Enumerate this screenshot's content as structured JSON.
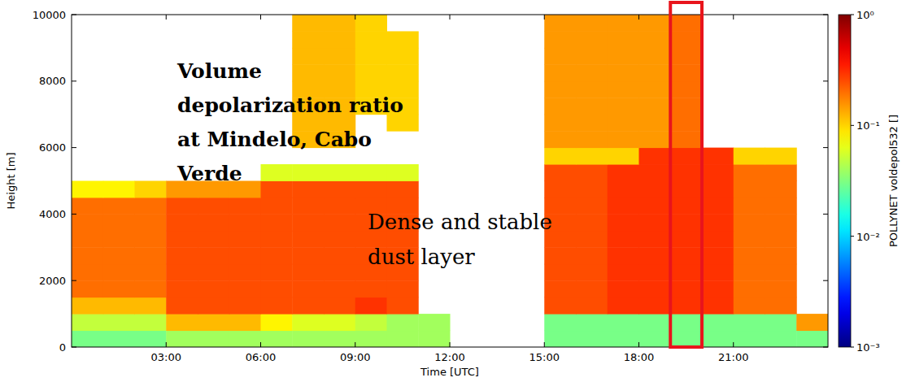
{
  "chart_data": {
    "type": "heatmap",
    "x_label": "Time [UTC]",
    "y_label": "Height [m]",
    "annotations": [
      "Volume depolarization ratio at Mindelo, Cabo Verde",
      "Dense and stable dust layer"
    ],
    "x_bins": [
      0,
      1,
      2,
      3,
      4,
      5,
      6,
      7,
      8,
      9,
      10,
      11,
      12,
      13,
      14,
      15,
      16,
      17,
      18,
      19,
      20,
      21,
      22,
      23,
      24
    ],
    "y_bins": [
      0,
      500,
      1000,
      1500,
      2000,
      2500,
      3000,
      3500,
      4000,
      4500,
      5000,
      5500,
      6000,
      6500,
      7000,
      7500,
      8000,
      8500,
      9000,
      9500,
      10000
    ],
    "cells": [
      [
        0.03,
        0.03,
        0.03,
        0.04,
        0.04,
        0.04,
        0.04,
        0.04,
        0.04,
        0.04,
        0.04,
        0.04,
        null,
        null,
        null,
        0.03,
        0.03,
        0.03,
        0.03,
        0.03,
        0.03,
        0.03,
        0.03,
        0.03
      ],
      [
        0.05,
        0.05,
        0.05,
        0.12,
        0.12,
        0.12,
        0.08,
        0.06,
        0.06,
        0.05,
        0.04,
        0.04,
        null,
        null,
        null,
        0.03,
        0.03,
        0.03,
        0.03,
        0.03,
        0.03,
        0.03,
        0.03,
        0.15
      ],
      [
        0.12,
        0.12,
        0.12,
        0.25,
        0.25,
        0.25,
        0.25,
        0.25,
        0.25,
        0.3,
        0.25,
        null,
        null,
        null,
        null,
        0.25,
        0.25,
        0.3,
        0.3,
        0.3,
        0.3,
        0.2,
        0.2,
        null
      ],
      [
        0.2,
        0.2,
        0.2,
        0.25,
        0.25,
        0.25,
        0.25,
        0.25,
        0.25,
        0.25,
        0.25,
        null,
        null,
        null,
        null,
        0.25,
        0.25,
        0.3,
        0.3,
        0.3,
        0.3,
        0.2,
        0.2,
        null
      ],
      [
        0.2,
        0.2,
        0.2,
        0.25,
        0.25,
        0.25,
        0.25,
        0.25,
        0.25,
        0.25,
        0.25,
        null,
        null,
        null,
        null,
        0.25,
        0.25,
        0.3,
        0.3,
        0.3,
        0.3,
        0.2,
        0.2,
        null
      ],
      [
        0.2,
        0.2,
        0.2,
        0.25,
        0.25,
        0.25,
        0.25,
        0.25,
        0.25,
        0.25,
        0.25,
        null,
        null,
        null,
        null,
        0.25,
        0.25,
        0.3,
        0.3,
        0.3,
        0.3,
        0.2,
        0.2,
        null
      ],
      [
        0.2,
        0.2,
        0.2,
        0.25,
        0.25,
        0.25,
        0.25,
        0.25,
        0.25,
        0.25,
        0.25,
        null,
        null,
        null,
        null,
        0.25,
        0.25,
        0.3,
        0.3,
        0.3,
        0.3,
        0.2,
        0.2,
        null
      ],
      [
        0.2,
        0.2,
        0.2,
        0.25,
        0.25,
        0.25,
        0.25,
        0.25,
        0.25,
        0.25,
        0.25,
        null,
        null,
        null,
        null,
        0.25,
        0.25,
        0.3,
        0.3,
        0.3,
        0.3,
        0.2,
        0.2,
        null
      ],
      [
        0.2,
        0.2,
        0.2,
        0.25,
        0.25,
        0.25,
        0.25,
        0.25,
        0.25,
        0.25,
        0.25,
        null,
        null,
        null,
        null,
        0.25,
        0.25,
        0.3,
        0.3,
        0.3,
        0.3,
        0.2,
        0.2,
        null
      ],
      [
        0.08,
        0.08,
        0.1,
        0.15,
        0.15,
        0.15,
        0.25,
        0.25,
        0.25,
        0.25,
        0.25,
        null,
        null,
        null,
        null,
        0.25,
        0.25,
        0.3,
        0.3,
        0.3,
        0.3,
        0.2,
        0.2,
        null
      ],
      [
        null,
        null,
        null,
        null,
        null,
        null,
        0.06,
        0.06,
        0.06,
        0.06,
        0.06,
        null,
        null,
        null,
        null,
        0.25,
        0.25,
        0.3,
        0.3,
        0.3,
        0.3,
        0.2,
        0.2,
        null
      ],
      [
        null,
        null,
        null,
        null,
        null,
        null,
        null,
        null,
        null,
        null,
        null,
        null,
        null,
        null,
        null,
        0.1,
        0.1,
        0.1,
        0.3,
        0.3,
        0.3,
        0.1,
        0.1,
        null
      ],
      [
        null,
        null,
        null,
        null,
        null,
        null,
        null,
        0.12,
        0.12,
        null,
        null,
        null,
        null,
        null,
        null,
        0.15,
        0.15,
        0.15,
        0.15,
        0.2,
        null,
        null,
        null,
        null
      ],
      [
        null,
        null,
        null,
        null,
        null,
        null,
        null,
        0.12,
        0.12,
        null,
        0.1,
        null,
        null,
        null,
        null,
        0.15,
        0.15,
        0.15,
        0.15,
        0.2,
        null,
        null,
        null,
        null
      ],
      [
        null,
        null,
        null,
        null,
        null,
        null,
        null,
        0.12,
        0.12,
        0.1,
        0.1,
        null,
        null,
        null,
        null,
        0.15,
        0.15,
        0.15,
        0.15,
        0.2,
        null,
        null,
        null,
        null
      ],
      [
        null,
        null,
        null,
        null,
        null,
        null,
        null,
        0.12,
        0.12,
        0.1,
        0.1,
        null,
        null,
        null,
        null,
        0.15,
        0.15,
        0.15,
        0.15,
        0.2,
        null,
        null,
        null,
        null
      ],
      [
        null,
        null,
        null,
        null,
        null,
        null,
        null,
        0.12,
        0.12,
        0.1,
        0.1,
        null,
        null,
        null,
        null,
        0.15,
        0.15,
        0.15,
        0.15,
        0.2,
        null,
        null,
        null,
        null
      ],
      [
        null,
        null,
        null,
        null,
        null,
        null,
        null,
        0.12,
        0.12,
        0.1,
        0.1,
        null,
        null,
        null,
        null,
        0.15,
        0.15,
        0.15,
        0.15,
        0.2,
        null,
        null,
        null,
        null
      ],
      [
        null,
        null,
        null,
        null,
        null,
        null,
        null,
        0.12,
        0.12,
        0.1,
        0.1,
        null,
        null,
        null,
        null,
        0.15,
        0.15,
        0.15,
        0.15,
        0.2,
        null,
        null,
        null,
        null
      ],
      [
        null,
        null,
        null,
        null,
        null,
        null,
        null,
        0.12,
        0.12,
        0.1,
        null,
        null,
        null,
        null,
        null,
        0.15,
        0.15,
        0.15,
        0.15,
        0.2,
        null,
        null,
        null,
        null
      ]
    ],
    "xlim": [
      0,
      24
    ],
    "ylim": [
      0,
      10000
    ],
    "xticks": [
      {
        "value": 3,
        "label": "03:00"
      },
      {
        "value": 6,
        "label": "06:00"
      },
      {
        "value": 9,
        "label": "09:00"
      },
      {
        "value": 12,
        "label": "12:00"
      },
      {
        "value": 15,
        "label": "15:00"
      },
      {
        "value": 18,
        "label": "18:00"
      },
      {
        "value": 21,
        "label": "21:00"
      }
    ],
    "yticks": [
      0,
      2000,
      4000,
      6000,
      8000,
      10000
    ],
    "colorbar": {
      "label": "POLLYNET voldepol532 []",
      "range": [
        0.001,
        1
      ],
      "log": true,
      "ticks": [
        {
          "value": 0.001,
          "label": "10⁻³"
        },
        {
          "value": 0.01,
          "label": "10⁻²"
        },
        {
          "value": 0.1,
          "label": "10⁻¹"
        },
        {
          "value": 1,
          "label": "10⁰"
        }
      ]
    },
    "highlight": [
      19,
      20
    ]
  }
}
